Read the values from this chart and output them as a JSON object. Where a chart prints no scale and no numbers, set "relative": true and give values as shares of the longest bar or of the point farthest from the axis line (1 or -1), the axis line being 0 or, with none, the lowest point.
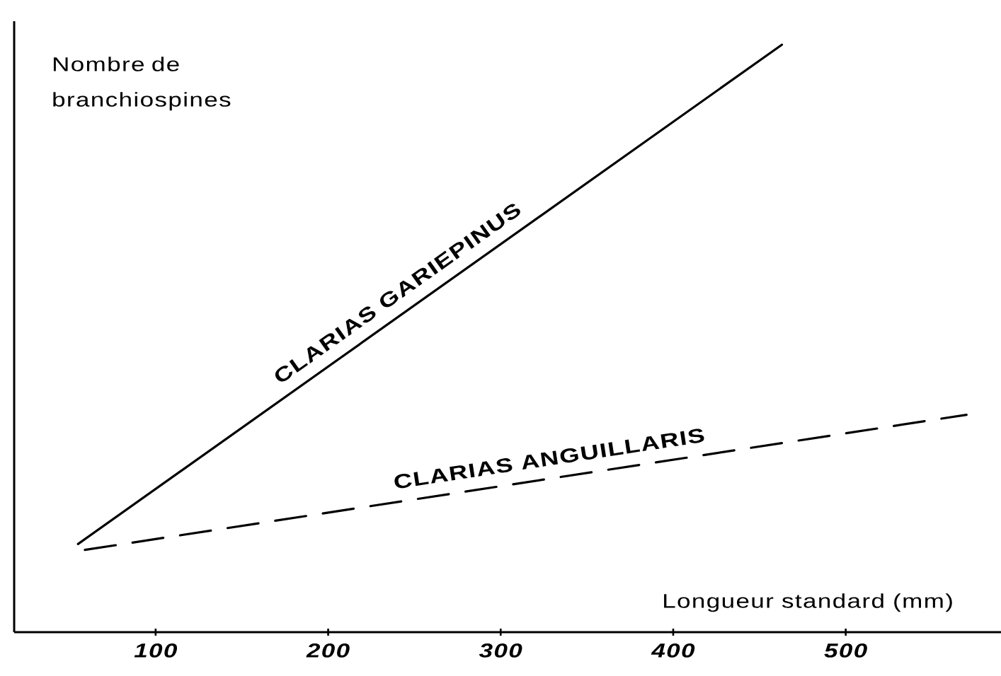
{
  "chart_data": {
    "type": "line",
    "xlabel": "Longueur standard (mm)",
    "ylabel": "Nombre de branchiospines",
    "relative": true,
    "xlim": [
      18,
      590
    ],
    "xticks": [
      100,
      200,
      300,
      400,
      500
    ],
    "series": [
      {
        "name": "CLARIAS GARIEPINUS",
        "color": "#000000",
        "line_style": "solid",
        "x": [
          55,
          463
        ],
        "values": [
          0.15,
          1
        ]
      },
      {
        "name": "CLARIAS ANGUILLARIS",
        "color": "#000000",
        "line_style": "dashed",
        "x": [
          59,
          570
        ],
        "values": [
          0.14,
          0.37
        ]
      }
    ]
  }
}
